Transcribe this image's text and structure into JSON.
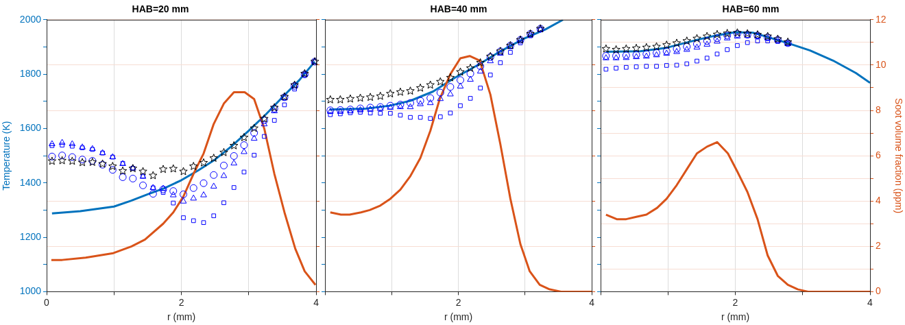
{
  "chart_data": [
    {
      "type": "scatter",
      "title": "HAB=20 mm",
      "xlabel": "r (mm)",
      "ylabel": "Temperature (K)",
      "xlim": [
        0,
        4
      ],
      "xticks": [
        0,
        {
          "value": 1,
          "label": null
        },
        2,
        {
          "value": 3,
          "label": null
        },
        4
      ],
      "ylim": [
        1000,
        2000
      ],
      "yticks": [
        1000,
        {
          "value": 1100,
          "label": null
        },
        1200,
        {
          "value": 1300,
          "label": null
        },
        1400,
        {
          "value": 1500,
          "label": null
        },
        1600,
        {
          "value": 1700,
          "label": null
        },
        1800,
        {
          "value": 1900,
          "label": null
        },
        2000
      ],
      "y2lim": [
        0,
        12
      ],
      "tick_labels": [
        "x",
        "y"
      ],
      "grid": [
        "x",
        "y2"
      ],
      "legend": false,
      "series": [
        {
          "type": "line",
          "color": "#0072bd",
          "marker": "none",
          "x": [
            0.08,
            0.5,
            1.0,
            1.25,
            1.5,
            1.75,
            2.0,
            2.25,
            2.5,
            2.75,
            3.0,
            3.25,
            3.5,
            3.75,
            3.98
          ],
          "values": [
            1288,
            1296,
            1313,
            1334,
            1358,
            1381,
            1410,
            1446,
            1486,
            1536,
            1592,
            1651,
            1715,
            1778,
            1846
          ]
        },
        {
          "type": "line",
          "color": "#d95319",
          "marker": "none",
          "axis": "y2",
          "x": [
            0.07,
            0.23,
            0.58,
            0.99,
            1.26,
            1.46,
            1.73,
            1.88,
            2.03,
            2.18,
            2.33,
            2.48,
            2.63,
            2.78,
            2.94,
            3.08,
            3.23,
            3.38,
            3.53,
            3.69,
            3.83,
            3.99
          ],
          "values": [
            1.4,
            1.4,
            1.5,
            1.7,
            2.0,
            2.3,
            3.0,
            3.5,
            4.2,
            5.2,
            6.1,
            7.4,
            8.3,
            8.8,
            8.8,
            8.5,
            7.2,
            5.2,
            3.5,
            1.9,
            0.9,
            0.3
          ]
        },
        {
          "type": "scatter",
          "color": "#0000ff",
          "marker": "square",
          "x": [
            0.08,
            0.23,
            0.38,
            0.53,
            0.68,
            0.83,
            0.98,
            1.13,
            1.28,
            1.43,
            1.58,
            1.73,
            1.88,
            2.03,
            2.18,
            2.33,
            2.48,
            2.63,
            2.78,
            2.93,
            3.08,
            3.23,
            3.38,
            3.53,
            3.68,
            3.83,
            3.98
          ],
          "values": [
            1537,
            1539,
            1535,
            1529,
            1523,
            1510,
            1495,
            1472,
            1454,
            1425,
            1382,
            1365,
            1326,
            1272,
            1261,
            1254,
            1279,
            1327,
            1383,
            1440,
            1502,
            1571,
            1630,
            1687,
            1745,
            1797,
            1846
          ]
        },
        {
          "type": "scatter",
          "color": "#0000ff",
          "marker": "triangle",
          "x": [
            0.08,
            0.23,
            0.38,
            0.53,
            0.68,
            0.83,
            0.98,
            1.13,
            1.28,
            1.43,
            1.58,
            1.73,
            1.88,
            2.03,
            2.18,
            2.33,
            2.48,
            2.63,
            2.78,
            2.93,
            3.08,
            3.23,
            3.38,
            3.53,
            3.68,
            3.83,
            3.98
          ],
          "values": [
            1543,
            1548,
            1543,
            1531,
            1525,
            1510,
            1495,
            1470,
            1454,
            1423,
            1382,
            1379,
            1355,
            1332,
            1343,
            1355,
            1387,
            1426,
            1472,
            1514,
            1563,
            1616,
            1664,
            1712,
            1757,
            1799,
            1846
          ]
        },
        {
          "type": "scatter",
          "color": "#0000ff",
          "marker": "circle",
          "x": [
            0.08,
            0.23,
            0.38,
            0.53,
            0.68,
            0.83,
            0.98,
            1.13,
            1.28,
            1.43,
            1.58,
            1.73,
            1.88,
            2.03,
            2.18,
            2.33,
            2.48,
            2.63,
            2.78,
            2.93,
            3.08,
            3.23,
            3.38,
            3.53,
            3.68,
            3.83,
            3.98
          ],
          "values": [
            1497,
            1501,
            1495,
            1486,
            1481,
            1467,
            1448,
            1421,
            1416,
            1391,
            1360,
            1376,
            1370,
            1358,
            1381,
            1399,
            1429,
            1464,
            1499,
            1539,
            1584,
            1630,
            1673,
            1715,
            1757,
            1799,
            1846
          ]
        },
        {
          "type": "scatter",
          "color": "#000000",
          "marker": "star",
          "x": [
            0.08,
            0.23,
            0.38,
            0.53,
            0.68,
            0.83,
            0.98,
            1.13,
            1.28,
            1.43,
            1.58,
            1.73,
            1.88,
            2.03,
            2.18,
            2.33,
            2.48,
            2.63,
            2.78,
            2.93,
            3.08,
            3.23,
            3.38,
            3.53,
            3.68,
            3.83,
            3.98
          ],
          "values": [
            1480,
            1482,
            1480,
            1475,
            1476,
            1470,
            1461,
            1444,
            1453,
            1442,
            1427,
            1450,
            1452,
            1442,
            1461,
            1474,
            1491,
            1512,
            1537,
            1567,
            1601,
            1636,
            1677,
            1717,
            1760,
            1802,
            1846
          ]
        }
      ]
    },
    {
      "type": "scatter",
      "title": "HAB=40 mm",
      "xlabel": "r (mm)",
      "xlim": [
        0,
        4
      ],
      "xticks": [
        {
          "value": 0,
          "label": null
        },
        {
          "value": 1,
          "label": null
        },
        2,
        {
          "value": 3,
          "label": null
        },
        4
      ],
      "ylim": [
        1000,
        2000
      ],
      "y2lim": [
        0,
        12
      ],
      "tick_labels": [
        "x"
      ],
      "grid": [
        "x",
        "y2"
      ],
      "legend": false,
      "series": [
        {
          "type": "line",
          "color": "#0072bd",
          "marker": "none",
          "x": [
            0.07,
            0.61,
            0.97,
            1.28,
            1.62,
            1.95,
            2.29,
            2.63,
            2.97,
            3.3,
            3.57
          ],
          "values": [
            1670,
            1673,
            1684,
            1702,
            1736,
            1787,
            1833,
            1884,
            1929,
            1964,
            2000
          ]
        },
        {
          "type": "line",
          "color": "#d95319",
          "marker": "none",
          "axis": "y2",
          "x": [
            0.08,
            0.24,
            0.37,
            0.54,
            0.67,
            0.83,
            0.98,
            1.13,
            1.28,
            1.43,
            1.58,
            1.72,
            1.88,
            2.03,
            2.17,
            2.32,
            2.48,
            2.63,
            2.78,
            2.93,
            3.07,
            3.22,
            3.37,
            3.54,
            4.0
          ],
          "values": [
            3.5,
            3.4,
            3.4,
            3.5,
            3.6,
            3.8,
            4.1,
            4.5,
            5.1,
            5.9,
            7.1,
            8.5,
            9.6,
            10.3,
            10.4,
            10.2,
            8.7,
            6.5,
            4.1,
            2.1,
            0.9,
            0.3,
            0.1,
            0,
            0
          ]
        },
        {
          "type": "scatter",
          "color": "#0000ff",
          "marker": "square",
          "x": [
            0.08,
            0.23,
            0.38,
            0.53,
            0.68,
            0.83,
            0.98,
            1.13,
            1.28,
            1.43,
            1.58,
            1.73,
            1.88,
            2.03,
            2.18,
            2.33,
            2.48,
            2.63,
            2.78,
            2.93,
            3.08,
            3.23
          ],
          "values": [
            1651,
            1654,
            1658,
            1660,
            1657,
            1656,
            1656,
            1649,
            1641,
            1641,
            1637,
            1643,
            1657,
            1684,
            1711,
            1749,
            1797,
            1842,
            1880,
            1915,
            1941,
            1964
          ]
        },
        {
          "type": "scatter",
          "color": "#0000ff",
          "marker": "triangle",
          "x": [
            0.08,
            0.23,
            0.38,
            0.53,
            0.68,
            0.83,
            0.98,
            1.13,
            1.28,
            1.43,
            1.58,
            1.73,
            1.88,
            2.03,
            2.18,
            2.33,
            2.48,
            2.63,
            2.78,
            2.93,
            3.08,
            3.23
          ],
          "values": [
            1662,
            1662,
            1664,
            1668,
            1670,
            1673,
            1677,
            1679,
            1679,
            1690,
            1694,
            1709,
            1726,
            1755,
            1780,
            1810,
            1848,
            1876,
            1901,
            1924,
            1945,
            1964
          ]
        },
        {
          "type": "scatter",
          "color": "#0000ff",
          "marker": "circle",
          "x": [
            0.08,
            0.23,
            0.38,
            0.53,
            0.68,
            0.83,
            0.98,
            1.13,
            1.28,
            1.43,
            1.58,
            1.73,
            1.88,
            2.03,
            2.18,
            2.33,
            2.48,
            2.63,
            2.78,
            2.93,
            3.08,
            3.23
          ],
          "values": [
            1667,
            1668,
            1670,
            1674,
            1677,
            1679,
            1684,
            1688,
            1694,
            1702,
            1712,
            1732,
            1753,
            1778,
            1802,
            1829,
            1863,
            1884,
            1905,
            1926,
            1948,
            1967
          ]
        },
        {
          "type": "scatter",
          "color": "#000000",
          "marker": "star",
          "x": [
            0.08,
            0.23,
            0.38,
            0.53,
            0.68,
            0.83,
            0.98,
            1.13,
            1.28,
            1.43,
            1.58,
            1.73,
            1.88,
            2.03,
            2.18,
            2.33,
            2.48,
            2.63,
            2.78,
            2.93,
            3.08,
            3.23
          ],
          "values": [
            1706,
            1706,
            1709,
            1712,
            1715,
            1719,
            1728,
            1734,
            1738,
            1749,
            1760,
            1772,
            1787,
            1808,
            1822,
            1842,
            1865,
            1884,
            1905,
            1926,
            1948,
            1967
          ]
        }
      ]
    },
    {
      "type": "scatter",
      "title": "HAB=60 mm",
      "xlabel": "r (mm)",
      "y2label": "Soot volume fraction (ppm)",
      "xlim": [
        0,
        4
      ],
      "xticks": [
        {
          "value": 0,
          "label": null
        },
        {
          "value": 1,
          "label": null
        },
        2,
        {
          "value": 3,
          "label": null
        },
        4
      ],
      "ylim": [
        1000,
        2000
      ],
      "y2lim": [
        0,
        12
      ],
      "y2ticks": [
        0,
        {
          "value": 1,
          "label": null
        },
        2,
        {
          "value": 3,
          "label": null
        },
        4,
        {
          "value": 5,
          "label": null
        },
        6,
        {
          "value": 7,
          "label": null
        },
        8,
        {
          "value": 9,
          "label": null
        },
        10,
        {
          "value": 11,
          "label": null
        },
        12
      ],
      "tick_labels": [
        "x",
        "y2"
      ],
      "grid": [
        "x",
        "y2"
      ],
      "legend": false,
      "series": [
        {
          "type": "line",
          "color": "#0072bd",
          "marker": "none",
          "x": [
            0.08,
            0.59,
            0.98,
            1.43,
            1.73,
            2.0,
            2.27,
            2.78,
            3.11,
            3.45,
            3.79,
            4.0
          ],
          "values": [
            1882,
            1884,
            1897,
            1926,
            1943,
            1954,
            1952,
            1914,
            1887,
            1850,
            1804,
            1768
          ]
        },
        {
          "type": "line",
          "color": "#d95319",
          "marker": "none",
          "axis": "y2",
          "x": [
            0.08,
            0.24,
            0.38,
            0.53,
            0.68,
            0.84,
            0.98,
            1.13,
            1.28,
            1.43,
            1.58,
            1.73,
            1.89,
            2.03,
            2.18,
            2.33,
            2.48,
            2.63,
            2.78,
            2.93,
            3.08,
            4.0
          ],
          "values": [
            3.4,
            3.2,
            3.2,
            3.3,
            3.4,
            3.7,
            4.1,
            4.7,
            5.4,
            6.1,
            6.4,
            6.6,
            6.1,
            5.3,
            4.4,
            3.2,
            1.6,
            0.7,
            0.3,
            0.1,
            0,
            0
          ]
        },
        {
          "type": "scatter",
          "color": "#0000ff",
          "marker": "square",
          "x": [
            0.08,
            0.23,
            0.38,
            0.53,
            0.68,
            0.83,
            0.98,
            1.13,
            1.28,
            1.43,
            1.58,
            1.73,
            1.88,
            2.03,
            2.18,
            2.33,
            2.48,
            2.63,
            2.78
          ],
          "values": [
            1818,
            1822,
            1825,
            1827,
            1829,
            1829,
            1832,
            1833,
            1838,
            1848,
            1859,
            1874,
            1890,
            1905,
            1916,
            1922,
            1922,
            1920,
            1914
          ]
        },
        {
          "type": "scatter",
          "color": "#0000ff",
          "marker": "triangle",
          "x": [
            0.08,
            0.23,
            0.38,
            0.53,
            0.68,
            0.83,
            0.98,
            1.13,
            1.28,
            1.43,
            1.58,
            1.73,
            1.88,
            2.03,
            2.18,
            2.33,
            2.48,
            2.63,
            2.78
          ],
          "values": [
            1859,
            1859,
            1860,
            1863,
            1865,
            1870,
            1876,
            1882,
            1890,
            1898,
            1909,
            1920,
            1932,
            1939,
            1941,
            1939,
            1932,
            1924,
            1911
          ]
        },
        {
          "type": "scatter",
          "color": "#0000ff",
          "marker": "circle",
          "x": [
            0.08,
            0.23,
            0.38,
            0.53,
            0.68,
            0.83,
            0.98,
            1.13,
            1.28,
            1.43,
            1.58,
            1.73,
            1.88,
            2.03,
            2.18,
            2.33,
            2.48,
            2.63,
            2.78
          ],
          "values": [
            1867,
            1867,
            1869,
            1871,
            1874,
            1878,
            1884,
            1893,
            1901,
            1911,
            1922,
            1932,
            1942,
            1948,
            1945,
            1942,
            1935,
            1926,
            1914
          ]
        },
        {
          "type": "scatter",
          "color": "#000000",
          "marker": "star",
          "x": [
            0.08,
            0.23,
            0.38,
            0.53,
            0.68,
            0.83,
            0.98,
            1.13,
            1.28,
            1.43,
            1.58,
            1.73,
            1.88,
            2.03,
            2.18,
            2.33,
            2.48,
            2.63,
            2.78
          ],
          "values": [
            1893,
            1890,
            1893,
            1895,
            1898,
            1901,
            1907,
            1914,
            1922,
            1931,
            1939,
            1946,
            1950,
            1952,
            1949,
            1945,
            1939,
            1929,
            1918
          ]
        }
      ]
    }
  ]
}
